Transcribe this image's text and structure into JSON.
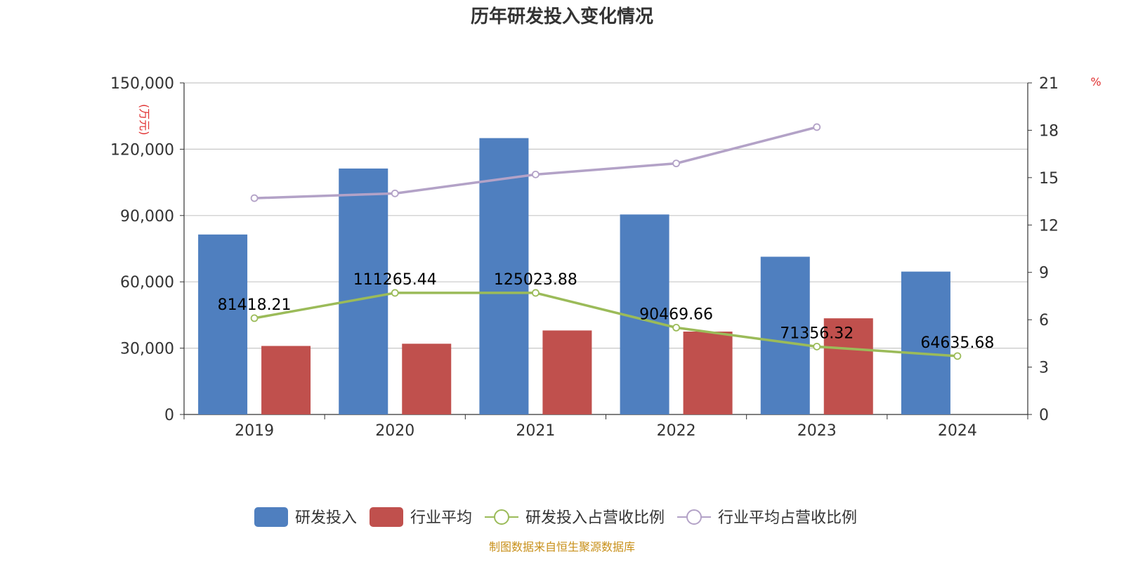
{
  "chart_data": {
    "type": "bar",
    "title": "历年研发投入变化情况",
    "categories": [
      "2019",
      "2020",
      "2021",
      "2022",
      "2023",
      "2024"
    ],
    "y_left": {
      "unit": "(万元)",
      "min": 0,
      "max": 150000,
      "ticks": [
        "0",
        "30,000",
        "60,000",
        "90,000",
        "120,000",
        "150,000"
      ]
    },
    "y_right": {
      "unit": "%",
      "min": 0,
      "max": 21,
      "ticks": [
        "0",
        "3",
        "6",
        "9",
        "12",
        "15",
        "18",
        "21"
      ]
    },
    "series": [
      {
        "name": "研发投入",
        "kind": "bar",
        "axis": "left",
        "color": "#4f7fbf",
        "values": [
          81418.21,
          111265.44,
          125023.88,
          90469.66,
          71356.32,
          64635.68
        ],
        "labels": [
          "81418.21",
          "111265.44",
          "125023.88",
          "90469.66",
          "71356.32",
          "64635.68"
        ]
      },
      {
        "name": "行业平均",
        "kind": "bar",
        "axis": "left",
        "color": "#c0504d",
        "values": [
          31000,
          32000,
          38000,
          37500,
          43500,
          null
        ]
      },
      {
        "name": "研发投入占营收比例",
        "kind": "line",
        "axis": "right",
        "color": "#9bbb59",
        "values": [
          6.1,
          7.7,
          7.7,
          5.5,
          4.3,
          3.7
        ]
      },
      {
        "name": "行业平均占营收比例",
        "kind": "line",
        "axis": "right",
        "color": "#b3a2c7",
        "values": [
          13.7,
          14.0,
          15.2,
          15.9,
          18.2,
          null
        ]
      }
    ],
    "grid": true,
    "legend_position": "bottom"
  },
  "footer": {
    "source": "制图数据来自恒生聚源数据库"
  }
}
